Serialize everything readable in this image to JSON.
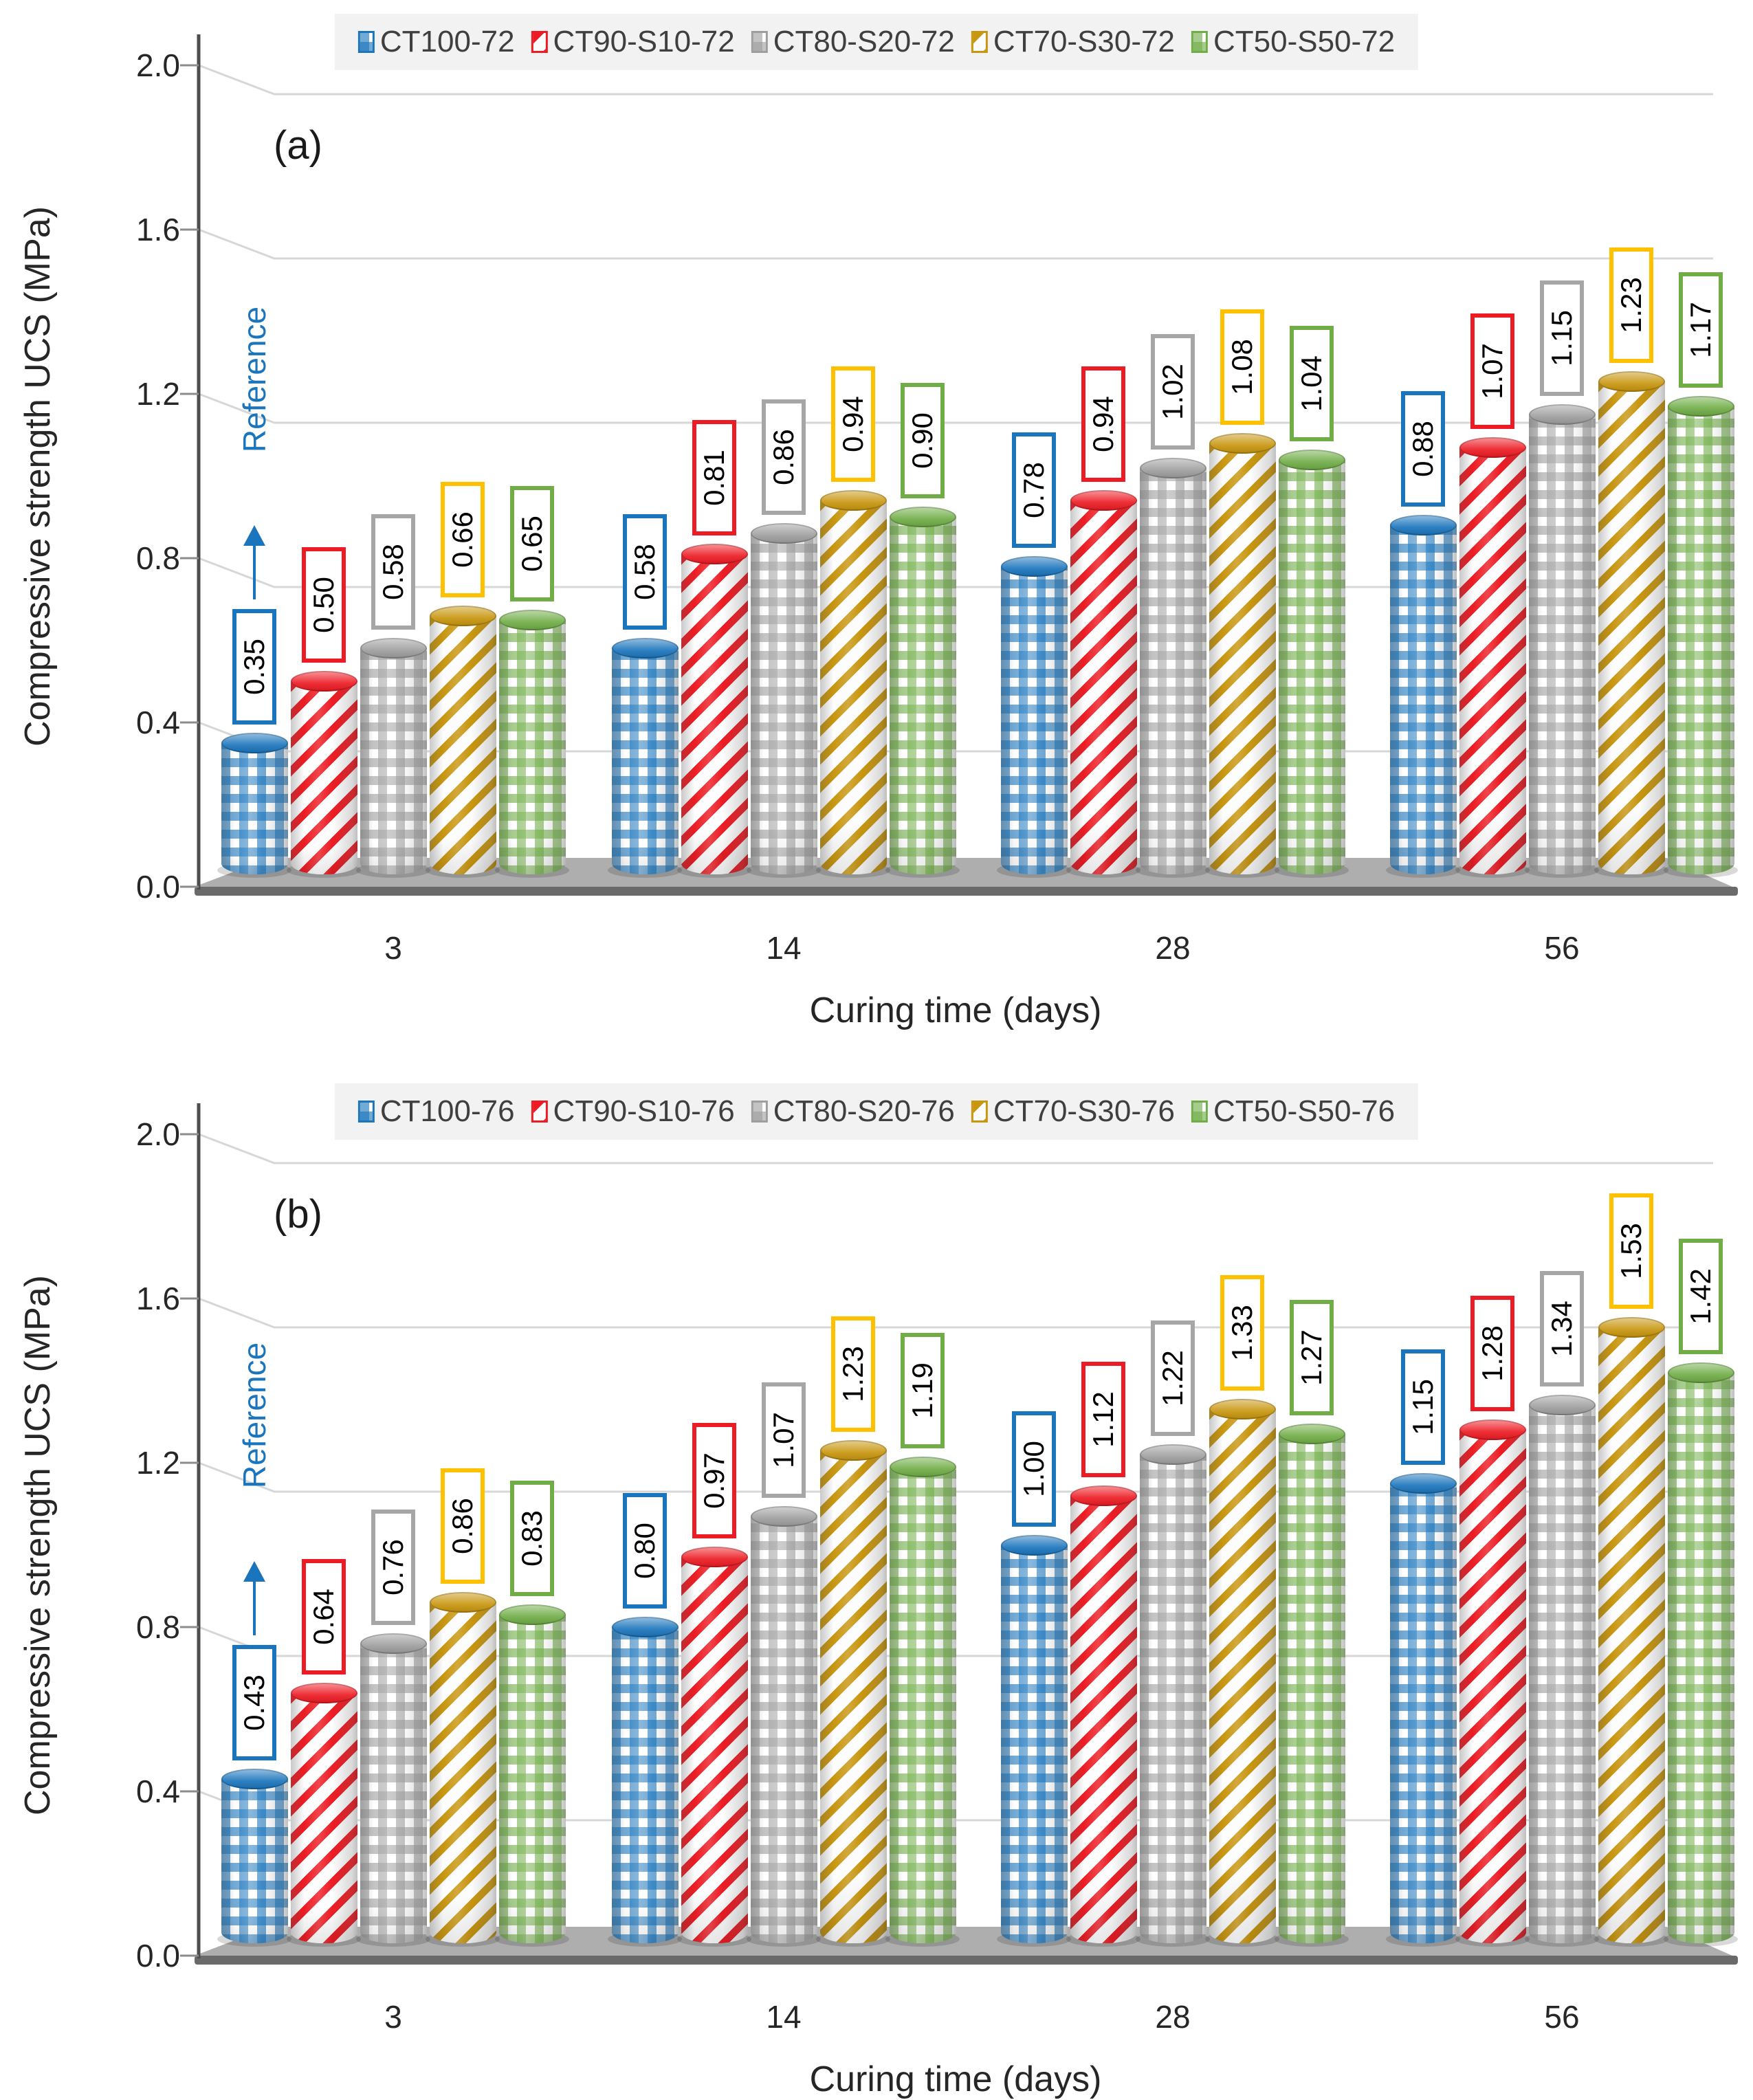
{
  "figure": {
    "annotation_label": "Reference",
    "x_axis_title": "Curing time (days)",
    "y_axis_title": "Compressive strength UCS (MPa)",
    "colors": {
      "blue": "#1B75BC",
      "red": "#ED1C24",
      "gray": "#9E9E9E",
      "gold": "#C8960F",
      "green": "#70AD47",
      "gold_label_border": "#FFC000",
      "gray_label_border": "#A6A6A6",
      "floor_top": "#AEAEAE",
      "floor_front": "#6A6A6A",
      "gridline": "#D7D7D7",
      "axis_line": "#4D4D4D",
      "legend_background": "#F2F2F2",
      "reference_blue": "#1B75BC"
    }
  },
  "chart_data": [
    {
      "type": "bar",
      "panel_label": "(a)",
      "title": "",
      "xlabel": "Curing time (days)",
      "ylabel": "Compressive strength UCS (MPa)",
      "categories": [
        "3",
        "14",
        "28",
        "56"
      ],
      "y_ticks": [
        "0.0",
        "0.4",
        "0.8",
        "1.2",
        "1.6",
        "2.0"
      ],
      "ylim": [
        0.0,
        2.0
      ],
      "grid": true,
      "legend_position": "top",
      "annotation": "Reference",
      "series": [
        {
          "name": "CT100-72",
          "color": "#1B75BC",
          "label_border": "#1B75BC",
          "pattern": "gingham",
          "values": [
            0.35,
            0.58,
            0.78,
            0.88
          ]
        },
        {
          "name": "CT90-S10-72",
          "color": "#ED1C24",
          "label_border": "#ED1C24",
          "pattern": "stripes",
          "values": [
            0.5,
            0.81,
            0.94,
            1.07
          ]
        },
        {
          "name": "CT80-S20-72",
          "color": "#9E9E9E",
          "label_border": "#A6A6A6",
          "pattern": "gingham",
          "values": [
            0.58,
            0.86,
            1.02,
            1.15
          ]
        },
        {
          "name": "CT70-S30-72",
          "color": "#C8960F",
          "label_border": "#FFC000",
          "pattern": "stripes",
          "values": [
            0.66,
            0.94,
            1.08,
            1.23
          ]
        },
        {
          "name": "CT50-S50-72",
          "color": "#70AD47",
          "label_border": "#70AD47",
          "pattern": "gingham",
          "values": [
            0.65,
            0.9,
            1.04,
            1.17
          ]
        }
      ]
    },
    {
      "type": "bar",
      "panel_label": "(b)",
      "title": "",
      "xlabel": "Curing time (days)",
      "ylabel": "Compressive strength UCS (MPa)",
      "categories": [
        "3",
        "14",
        "28",
        "56"
      ],
      "y_ticks": [
        "0.0",
        "0.4",
        "0.8",
        "1.2",
        "1.6",
        "2.0"
      ],
      "ylim": [
        0.0,
        2.0
      ],
      "grid": true,
      "legend_position": "top",
      "annotation": "Reference",
      "series": [
        {
          "name": "CT100-76",
          "color": "#1B75BC",
          "label_border": "#1B75BC",
          "pattern": "gingham",
          "values": [
            0.43,
            0.8,
            1.0,
            1.15
          ]
        },
        {
          "name": "CT90-S10-76",
          "color": "#ED1C24",
          "label_border": "#ED1C24",
          "pattern": "stripes",
          "values": [
            0.64,
            0.97,
            1.12,
            1.28
          ]
        },
        {
          "name": "CT80-S20-76",
          "color": "#9E9E9E",
          "label_border": "#A6A6A6",
          "pattern": "gingham",
          "values": [
            0.76,
            1.07,
            1.22,
            1.34
          ]
        },
        {
          "name": "CT70-S30-76",
          "color": "#C8960F",
          "label_border": "#FFC000",
          "pattern": "stripes",
          "values": [
            0.86,
            1.23,
            1.33,
            1.53
          ]
        },
        {
          "name": "CT50-S50-76",
          "color": "#70AD47",
          "label_border": "#70AD47",
          "pattern": "gingham",
          "values": [
            0.83,
            1.19,
            1.27,
            1.42
          ]
        }
      ]
    }
  ]
}
